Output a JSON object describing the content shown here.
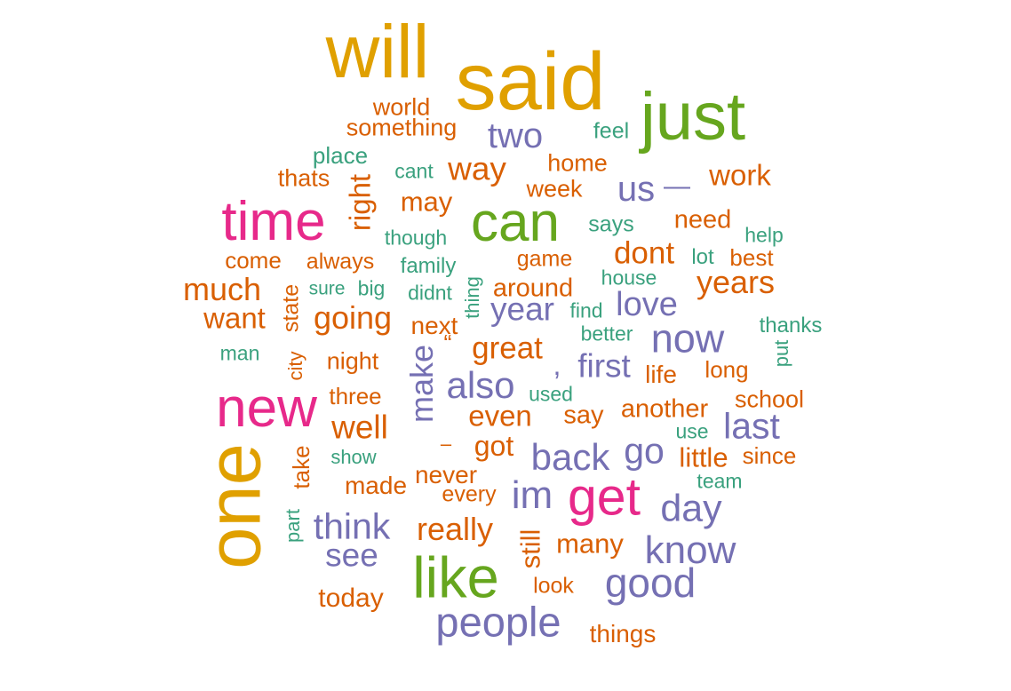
{
  "palette": {
    "gold": "#e0a000",
    "green": "#66a61e",
    "teal": "#3aa17e",
    "orange": "#d95f02",
    "purple": "#7570b3",
    "magenta": "#e7298a"
  },
  "words": [
    {
      "text": "will",
      "color": "gold",
      "vertical": false
    },
    {
      "text": "said",
      "color": "gold",
      "vertical": false
    },
    {
      "text": "just",
      "color": "green",
      "vertical": false
    },
    {
      "text": "world",
      "color": "orange",
      "vertical": false
    },
    {
      "text": "something",
      "color": "orange",
      "vertical": false
    },
    {
      "text": "two",
      "color": "purple",
      "vertical": false
    },
    {
      "text": "feel",
      "color": "teal",
      "vertical": false
    },
    {
      "text": "place",
      "color": "teal",
      "vertical": false
    },
    {
      "text": "home",
      "color": "orange",
      "vertical": false
    },
    {
      "text": "way",
      "color": "orange",
      "vertical": false
    },
    {
      "text": "cant",
      "color": "teal",
      "vertical": false
    },
    {
      "text": "thats",
      "color": "orange",
      "vertical": false
    },
    {
      "text": "week",
      "color": "orange",
      "vertical": false
    },
    {
      "text": "us",
      "color": "purple",
      "vertical": false
    },
    {
      "text": "—",
      "color": "purple",
      "vertical": false
    },
    {
      "text": "work",
      "color": "orange",
      "vertical": false
    },
    {
      "text": "right",
      "color": "orange",
      "vertical": true
    },
    {
      "text": "may",
      "color": "orange",
      "vertical": false
    },
    {
      "text": "time",
      "color": "magenta",
      "vertical": false
    },
    {
      "text": "can",
      "color": "green",
      "vertical": false
    },
    {
      "text": "says",
      "color": "teal",
      "vertical": false
    },
    {
      "text": "need",
      "color": "orange",
      "vertical": false
    },
    {
      "text": "help",
      "color": "teal",
      "vertical": false
    },
    {
      "text": "though",
      "color": "teal",
      "vertical": false
    },
    {
      "text": "dont",
      "color": "orange",
      "vertical": false
    },
    {
      "text": "come",
      "color": "orange",
      "vertical": false
    },
    {
      "text": "always",
      "color": "orange",
      "vertical": false
    },
    {
      "text": "family",
      "color": "teal",
      "vertical": false
    },
    {
      "text": "game",
      "color": "orange",
      "vertical": false
    },
    {
      "text": "lot",
      "color": "teal",
      "vertical": false
    },
    {
      "text": "best",
      "color": "orange",
      "vertical": false
    },
    {
      "text": "much",
      "color": "orange",
      "vertical": false
    },
    {
      "text": "state",
      "color": "orange",
      "vertical": true
    },
    {
      "text": "sure",
      "color": "teal",
      "vertical": false
    },
    {
      "text": "big",
      "color": "teal",
      "vertical": false
    },
    {
      "text": "didnt",
      "color": "teal",
      "vertical": false
    },
    {
      "text": "thing",
      "color": "teal",
      "vertical": true
    },
    {
      "text": "around",
      "color": "orange",
      "vertical": false
    },
    {
      "text": "house",
      "color": "teal",
      "vertical": false
    },
    {
      "text": "years",
      "color": "orange",
      "vertical": false
    },
    {
      "text": "want",
      "color": "orange",
      "vertical": false
    },
    {
      "text": "going",
      "color": "orange",
      "vertical": false
    },
    {
      "text": "next",
      "color": "orange",
      "vertical": false
    },
    {
      "text": "year",
      "color": "purple",
      "vertical": false
    },
    {
      "text": "find",
      "color": "teal",
      "vertical": false
    },
    {
      "text": "love",
      "color": "purple",
      "vertical": false
    },
    {
      "text": "thanks",
      "color": "teal",
      "vertical": false
    },
    {
      "text": "man",
      "color": "teal",
      "vertical": false
    },
    {
      "text": "city",
      "color": "orange",
      "vertical": true
    },
    {
      "text": "night",
      "color": "orange",
      "vertical": false
    },
    {
      "text": "make",
      "color": "purple",
      "vertical": true
    },
    {
      "text": "“",
      "color": "orange",
      "vertical": false
    },
    {
      "text": "great",
      "color": "orange",
      "vertical": false
    },
    {
      "text": "better",
      "color": "teal",
      "vertical": false
    },
    {
      "text": "now",
      "color": "purple",
      "vertical": false
    },
    {
      "text": "put",
      "color": "teal",
      "vertical": true
    },
    {
      "text": ",",
      "color": "purple",
      "vertical": false
    },
    {
      "text": "first",
      "color": "purple",
      "vertical": false
    },
    {
      "text": "life",
      "color": "orange",
      "vertical": false
    },
    {
      "text": "long",
      "color": "orange",
      "vertical": false
    },
    {
      "text": "three",
      "color": "orange",
      "vertical": false
    },
    {
      "text": "also",
      "color": "purple",
      "vertical": false
    },
    {
      "text": "used",
      "color": "teal",
      "vertical": false
    },
    {
      "text": "school",
      "color": "orange",
      "vertical": false
    },
    {
      "text": "new",
      "color": "magenta",
      "vertical": false
    },
    {
      "text": "well",
      "color": "orange",
      "vertical": false
    },
    {
      "text": "even",
      "color": "orange",
      "vertical": false
    },
    {
      "text": "say",
      "color": "orange",
      "vertical": false
    },
    {
      "text": "another",
      "color": "orange",
      "vertical": false
    },
    {
      "text": "last",
      "color": "purple",
      "vertical": false
    },
    {
      "text": "one",
      "color": "gold",
      "vertical": true
    },
    {
      "text": "–",
      "color": "orange",
      "vertical": false
    },
    {
      "text": "got",
      "color": "orange",
      "vertical": false
    },
    {
      "text": "use",
      "color": "teal",
      "vertical": false
    },
    {
      "text": "show",
      "color": "teal",
      "vertical": false
    },
    {
      "text": "take",
      "color": "orange",
      "vertical": true
    },
    {
      "text": "back",
      "color": "purple",
      "vertical": false
    },
    {
      "text": "go",
      "color": "purple",
      "vertical": false
    },
    {
      "text": "little",
      "color": "orange",
      "vertical": false
    },
    {
      "text": "since",
      "color": "orange",
      "vertical": false
    },
    {
      "text": "never",
      "color": "orange",
      "vertical": false
    },
    {
      "text": "made",
      "color": "orange",
      "vertical": false
    },
    {
      "text": "every",
      "color": "orange",
      "vertical": false
    },
    {
      "text": "team",
      "color": "teal",
      "vertical": false
    },
    {
      "text": "im",
      "color": "purple",
      "vertical": false
    },
    {
      "text": "get",
      "color": "magenta",
      "vertical": false
    },
    {
      "text": "day",
      "color": "purple",
      "vertical": false
    },
    {
      "text": "part",
      "color": "teal",
      "vertical": true
    },
    {
      "text": "think",
      "color": "purple",
      "vertical": false
    },
    {
      "text": "really",
      "color": "orange",
      "vertical": false
    },
    {
      "text": "still",
      "color": "orange",
      "vertical": true
    },
    {
      "text": "many",
      "color": "orange",
      "vertical": false
    },
    {
      "text": "know",
      "color": "purple",
      "vertical": false
    },
    {
      "text": "see",
      "color": "purple",
      "vertical": false
    },
    {
      "text": "like",
      "color": "green",
      "vertical": false
    },
    {
      "text": "look",
      "color": "orange",
      "vertical": false
    },
    {
      "text": "good",
      "color": "purple",
      "vertical": false
    },
    {
      "text": "today",
      "color": "orange",
      "vertical": false
    },
    {
      "text": "people",
      "color": "purple",
      "vertical": false
    },
    {
      "text": "things",
      "color": "orange",
      "vertical": false
    }
  ]
}
